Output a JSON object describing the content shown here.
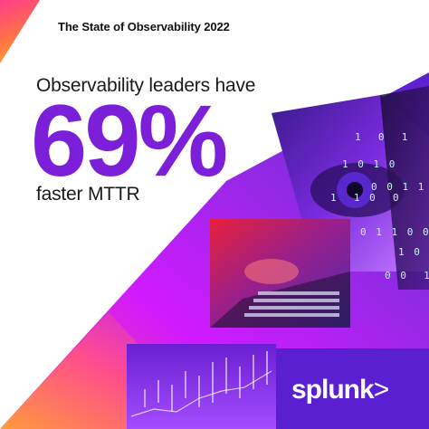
{
  "header": {
    "report_title": "The State of Observability 2022"
  },
  "stat": {
    "lead": "Observability leaders have",
    "value": "69%",
    "trail": "faster MTTR"
  },
  "brand": {
    "logo_text": "splunk",
    "logo_chevron": ">"
  },
  "decor": {
    "binary_rows": [
      "1  0  1",
      "1 0 1 0",
      "0 0 1 1 0",
      "1  1 0  0",
      "0 1 1 0 0",
      "1 0 1",
      "0 0  1"
    ]
  },
  "colors": {
    "accent_purple": "#7b1fd9",
    "magenta": "#d11aff",
    "orange": "#ff7a3d",
    "pink": "#ff3d8b",
    "text_dark": "#1a1a1a"
  },
  "images": {
    "eye_photo": "eye-closeup-image",
    "laptop_photo": "hands-typing-laptop-image",
    "chart_photo": "trading-chart-image"
  }
}
